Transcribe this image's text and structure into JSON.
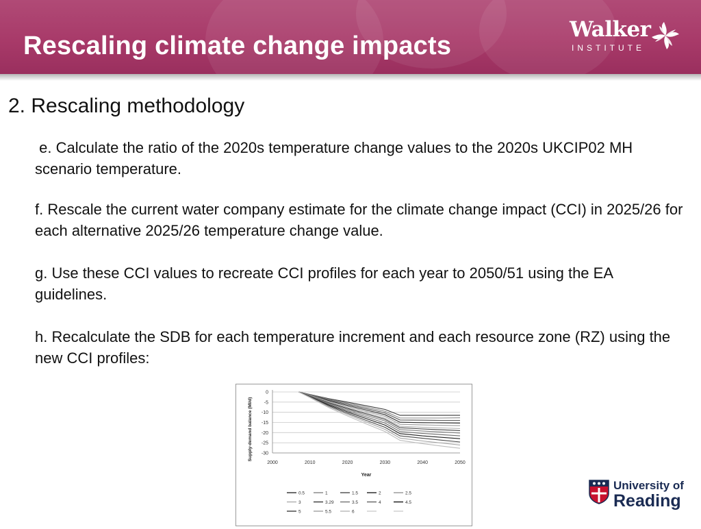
{
  "header": {
    "title": "Rescaling climate change impacts",
    "logo_name": "Walker",
    "logo_sub": "INSTITUTE"
  },
  "section": {
    "heading": "2. Rescaling methodology"
  },
  "steps": [
    " e. Calculate the ratio of the 2020s temperature change values to the 2020s UKCIP02 MH scenario temperature.",
    "f. Rescale the current water company estimate for the climate change impact (CCI) in 2025/26 for each alternative 2025/26 temperature change value.",
    "g. Use these CCI values to recreate CCI profiles for each year to 2050/51 using the EA guidelines.",
    "h. Recalculate the SDB for each temperature increment and each resource zone (RZ) using the new CCI profiles:"
  ],
  "footer": {
    "logo_line1": "University of",
    "logo_line2": "Reading"
  },
  "colors": {
    "banner": "#a83a69",
    "reading_navy": "#1a2b53",
    "reading_red": "#c8102e"
  },
  "chart_data": {
    "type": "line",
    "xlabel": "Year",
    "ylabel": "Supply-demand balance (Ml/d)",
    "xlim": [
      2000,
      2050
    ],
    "ylim": [
      -30,
      0
    ],
    "xticks": [
      2000,
      2010,
      2020,
      2030,
      2040,
      2050
    ],
    "yticks": [
      0,
      -5,
      -10,
      -15,
      -20,
      -25,
      -30
    ],
    "grid": true,
    "legend_position": "bottom",
    "x": [
      2007,
      2010,
      2015,
      2020,
      2025,
      2030,
      2034,
      2040,
      2045,
      2050
    ],
    "series": [
      {
        "name": "0.5",
        "color": "#3a3a3a",
        "values": [
          0,
          -1.2,
          -3.3,
          -5.0,
          -6.8,
          -8.6,
          -11.5,
          -11.5,
          -11.5,
          -11.5
        ]
      },
      {
        "name": "1",
        "color": "#8a8a8a",
        "values": [
          0,
          -1.3,
          -3.6,
          -5.5,
          -7.5,
          -9.5,
          -12.8,
          -12.8,
          -12.8,
          -12.7
        ]
      },
      {
        "name": "1.5",
        "color": "#555555",
        "values": [
          0,
          -1.4,
          -3.9,
          -6.0,
          -8.2,
          -10.3,
          -13.8,
          -13.9,
          -14.0,
          -14.0
        ]
      },
      {
        "name": "2",
        "color": "#2e2e2e",
        "values": [
          0,
          -1.5,
          -4.3,
          -6.6,
          -8.9,
          -11.2,
          -14.9,
          -15.1,
          -15.2,
          -15.3
        ]
      },
      {
        "name": "2.5",
        "color": "#9a9a9a",
        "values": [
          0,
          -1.6,
          -4.6,
          -7.1,
          -9.6,
          -12.0,
          -15.9,
          -16.2,
          -16.4,
          -16.6
        ]
      },
      {
        "name": "3",
        "color": "#b0b0b0",
        "values": [
          0,
          -1.8,
          -5.0,
          -7.7,
          -10.3,
          -12.9,
          -16.9,
          -17.4,
          -17.7,
          -18.0
        ]
      },
      {
        "name": "3.29",
        "color": "#444444",
        "values": [
          0,
          -1.9,
          -5.3,
          -8.1,
          -10.8,
          -13.5,
          -17.6,
          -18.2,
          -18.6,
          -19.0
        ]
      },
      {
        "name": "3.5",
        "color": "#7a7a7a",
        "values": [
          0,
          -2.0,
          -5.6,
          -8.6,
          -11.5,
          -14.3,
          -18.5,
          -19.2,
          -19.7,
          -20.2
        ]
      },
      {
        "name": "4",
        "color": "#6a6a6a",
        "values": [
          0,
          -2.1,
          -6.0,
          -9.2,
          -12.3,
          -15.3,
          -19.5,
          -20.4,
          -21.0,
          -21.6
        ]
      },
      {
        "name": "4.5",
        "color": "#222222",
        "values": [
          0,
          -2.3,
          -6.4,
          -9.8,
          -13.1,
          -16.3,
          -20.5,
          -21.6,
          -22.3,
          -23.0
        ]
      },
      {
        "name": "5",
        "color": "#4a4a4a",
        "values": [
          0,
          -2.4,
          -6.8,
          -10.5,
          -14.0,
          -17.4,
          -21.6,
          -22.8,
          -23.7,
          -24.6
        ]
      },
      {
        "name": "5.5",
        "color": "#a5a5a5",
        "values": [
          0,
          -2.6,
          -7.2,
          -11.1,
          -14.8,
          -18.4,
          -22.7,
          -24.1,
          -25.1,
          -26.1
        ]
      },
      {
        "name": "6",
        "color": "#bcbcbc",
        "values": [
          0,
          -2.8,
          -7.7,
          -11.8,
          -15.7,
          -19.5,
          -23.8,
          -25.4,
          -26.6,
          -27.7
        ]
      }
    ]
  }
}
